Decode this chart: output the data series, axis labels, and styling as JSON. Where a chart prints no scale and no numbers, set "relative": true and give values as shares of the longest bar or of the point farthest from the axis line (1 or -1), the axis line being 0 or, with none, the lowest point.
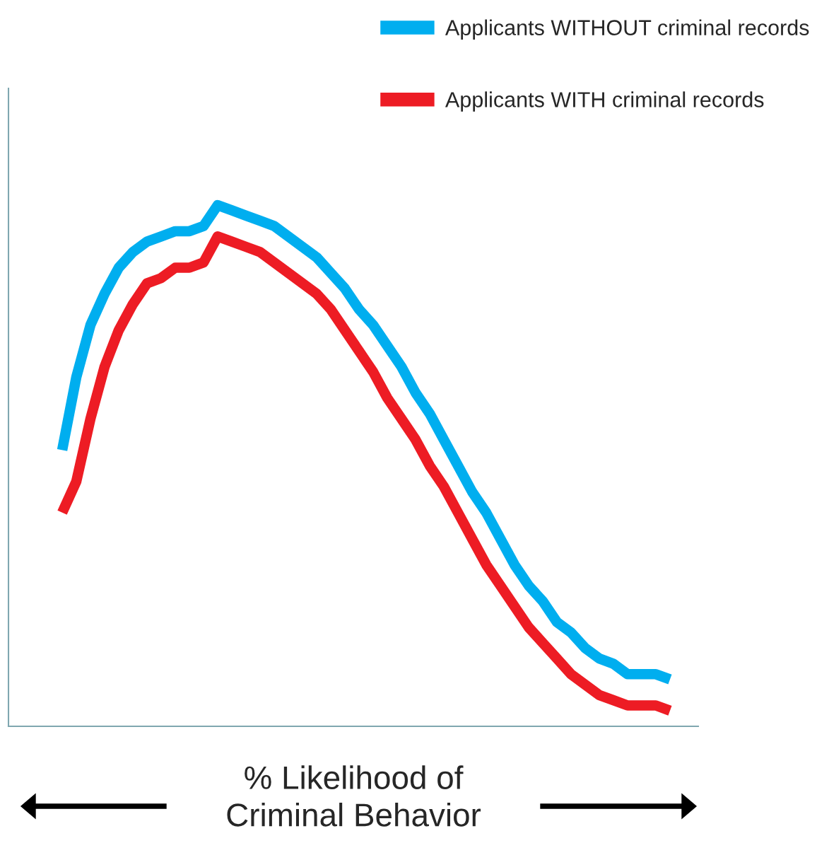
{
  "chart_data": {
    "type": "line",
    "relative": true,
    "xlabel": "% Likelihood of\nCriminal Behavior",
    "legend": "top right",
    "categories": [
      null,
      null,
      null,
      null,
      null,
      null,
      null,
      null,
      null,
      null,
      null,
      null,
      null,
      null,
      null,
      null,
      null,
      null,
      null,
      null,
      null,
      null,
      null,
      null,
      null,
      null,
      null,
      null,
      null,
      null,
      null,
      null,
      null,
      null,
      null,
      null,
      null,
      null,
      null,
      null,
      null,
      null,
      null,
      null
    ],
    "series": [
      {
        "name": "Applicants WITHOUT criminal records",
        "color": "#00aeef",
        "values": [
          0.53,
          0.67,
          0.77,
          0.83,
          0.88,
          0.91,
          0.93,
          0.94,
          0.95,
          0.95,
          0.96,
          1.0,
          0.99,
          0.98,
          0.97,
          0.96,
          0.94,
          0.92,
          0.9,
          0.87,
          0.84,
          0.8,
          0.77,
          0.73,
          0.69,
          0.64,
          0.6,
          0.55,
          0.5,
          0.45,
          0.41,
          0.36,
          0.31,
          0.27,
          0.24,
          0.2,
          0.18,
          0.15,
          0.13,
          0.12,
          0.1,
          0.1,
          0.1,
          0.09
        ]
      },
      {
        "name": "Applicants WITH criminal records",
        "color": "#ed1c24",
        "values": [
          0.41,
          0.47,
          0.59,
          0.69,
          0.76,
          0.81,
          0.85,
          0.86,
          0.88,
          0.88,
          0.89,
          0.94,
          0.93,
          0.92,
          0.91,
          0.89,
          0.87,
          0.85,
          0.83,
          0.8,
          0.76,
          0.72,
          0.68,
          0.63,
          0.59,
          0.55,
          0.5,
          0.46,
          0.41,
          0.36,
          0.31,
          0.27,
          0.23,
          0.19,
          0.16,
          0.13,
          0.1,
          0.08,
          0.06,
          0.05,
          0.04,
          0.04,
          0.04,
          0.03
        ]
      }
    ]
  }
}
